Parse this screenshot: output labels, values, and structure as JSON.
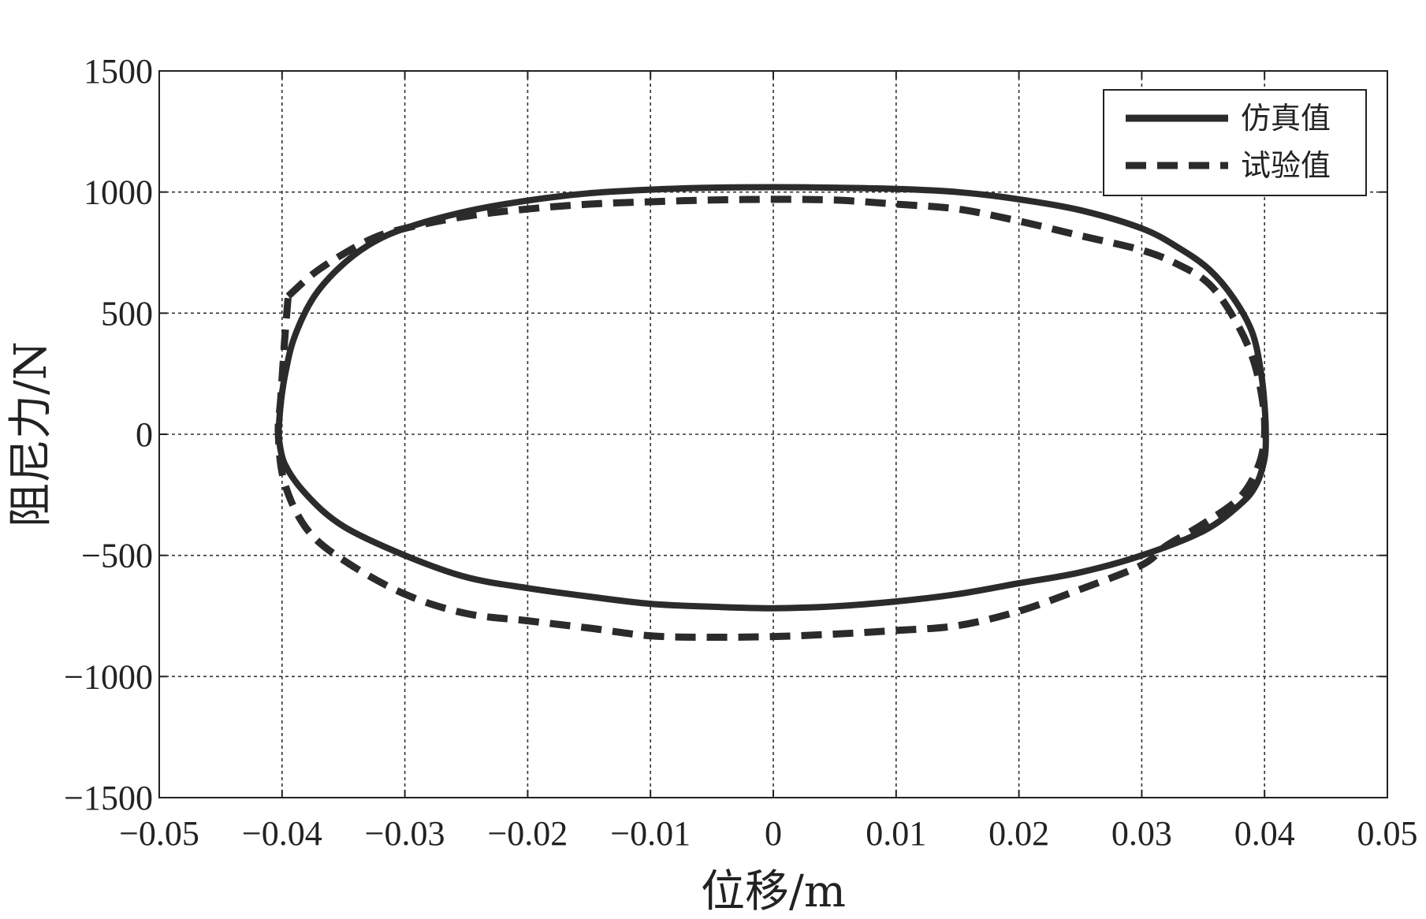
{
  "chart_data": {
    "type": "line",
    "xlabel": "位移/m",
    "ylabel": "阻尼力/N",
    "xlim": [
      -0.05,
      0.05
    ],
    "ylim": [
      -1500,
      1500
    ],
    "x_ticks": [
      -0.05,
      -0.04,
      -0.03,
      -0.02,
      -0.01,
      0,
      0.01,
      0.02,
      0.03,
      0.04,
      0.05
    ],
    "x_tick_labels": [
      "−0.05",
      "−0.04",
      "−0.03",
      "−0.02",
      "−0.01",
      "0",
      "0.01",
      "0.02",
      "0.03",
      "0.04",
      "0.05"
    ],
    "y_ticks": [
      1500,
      1000,
      500,
      0,
      -500,
      -1000,
      -1500
    ],
    "y_tick_labels": [
      "1500",
      "1000",
      "500",
      "0",
      "−500",
      "−1000",
      "−1500"
    ],
    "grid": true,
    "legend_position": "top-right",
    "series": [
      {
        "name": "仿真值",
        "style": "solid",
        "color": "#2b2b2b",
        "points": [
          [
            -0.0403,
            0
          ],
          [
            -0.0401,
            130
          ],
          [
            -0.0397,
            260
          ],
          [
            -0.039,
            400
          ],
          [
            -0.0375,
            560
          ],
          [
            -0.0355,
            680
          ],
          [
            -0.033,
            780
          ],
          [
            -0.03,
            850
          ],
          [
            -0.025,
            920
          ],
          [
            -0.02,
            965
          ],
          [
            -0.015,
            995
          ],
          [
            -0.01,
            1010
          ],
          [
            -0.005,
            1018
          ],
          [
            0,
            1020
          ],
          [
            0.005,
            1018
          ],
          [
            0.01,
            1013
          ],
          [
            0.015,
            1000
          ],
          [
            0.02,
            970
          ],
          [
            0.025,
            925
          ],
          [
            0.03,
            850
          ],
          [
            0.033,
            770
          ],
          [
            0.0355,
            680
          ],
          [
            0.0375,
            560
          ],
          [
            0.039,
            420
          ],
          [
            0.0397,
            260
          ],
          [
            0.04,
            120
          ],
          [
            0.0401,
            0
          ],
          [
            0.04,
            -100
          ],
          [
            0.0393,
            -210
          ],
          [
            0.038,
            -290
          ],
          [
            0.035,
            -400
          ],
          [
            0.03,
            -500
          ],
          [
            0.025,
            -570
          ],
          [
            0.02,
            -615
          ],
          [
            0.015,
            -660
          ],
          [
            0.01,
            -690
          ],
          [
            0.005,
            -710
          ],
          [
            0,
            -718
          ],
          [
            -0.005,
            -712
          ],
          [
            -0.01,
            -700
          ],
          [
            -0.015,
            -670
          ],
          [
            -0.02,
            -635
          ],
          [
            -0.025,
            -590
          ],
          [
            -0.03,
            -500
          ],
          [
            -0.035,
            -380
          ],
          [
            -0.038,
            -250
          ],
          [
            -0.0398,
            -120
          ],
          [
            -0.0403,
            0
          ]
        ]
      },
      {
        "name": "试验值",
        "style": "dashed",
        "color": "#2b2b2b",
        "points": [
          [
            -0.0395,
            570
          ],
          [
            -0.037,
            680
          ],
          [
            -0.033,
            800
          ],
          [
            -0.03,
            850
          ],
          [
            -0.025,
            900
          ],
          [
            -0.02,
            930
          ],
          [
            -0.015,
            950
          ],
          [
            -0.01,
            960
          ],
          [
            -0.005,
            967
          ],
          [
            0,
            970
          ],
          [
            0.005,
            967
          ],
          [
            0.01,
            950
          ],
          [
            0.015,
            930
          ],
          [
            0.02,
            880
          ],
          [
            0.025,
            820
          ],
          [
            0.03,
            760
          ],
          [
            0.033,
            700
          ],
          [
            0.0355,
            620
          ],
          [
            0.0375,
            480
          ],
          [
            0.039,
            320
          ],
          [
            0.0398,
            150
          ],
          [
            0.04,
            0
          ],
          [
            0.0395,
            -130
          ],
          [
            0.038,
            -260
          ],
          [
            0.035,
            -370
          ],
          [
            0.032,
            -460
          ],
          [
            0.03,
            -540
          ],
          [
            0.025,
            -640
          ],
          [
            0.02,
            -730
          ],
          [
            0.015,
            -790
          ],
          [
            0.01,
            -810
          ],
          [
            0.005,
            -825
          ],
          [
            0,
            -835
          ],
          [
            -0.005,
            -838
          ],
          [
            -0.01,
            -832
          ],
          [
            -0.015,
            -800
          ],
          [
            -0.02,
            -770
          ],
          [
            -0.025,
            -740
          ],
          [
            -0.03,
            -660
          ],
          [
            -0.035,
            -520
          ],
          [
            -0.038,
            -390
          ],
          [
            -0.0398,
            -200
          ],
          [
            -0.0403,
            0
          ],
          [
            -0.0401,
            150
          ],
          [
            -0.0398,
            380
          ],
          [
            -0.0395,
            570
          ]
        ]
      }
    ]
  },
  "colors": {
    "axis": "#222222",
    "grid": "#333333",
    "series": "#2b2b2b"
  }
}
